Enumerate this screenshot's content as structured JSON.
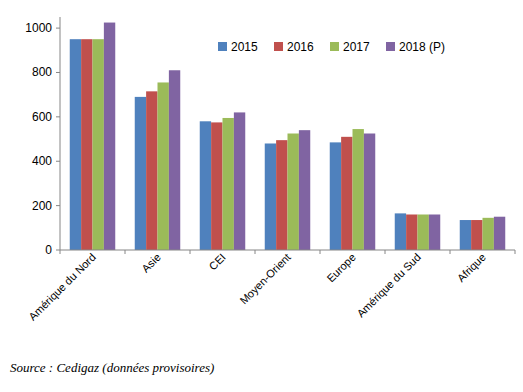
{
  "chart_data": {
    "type": "bar",
    "categories": [
      "Amérique du Nord",
      "Asie",
      "CEI",
      "Moyen-Orient",
      "Europe",
      "Amérique du Sud",
      "Afrique"
    ],
    "series": [
      {
        "name": "2015",
        "color": "#4f81bd",
        "values": [
          950,
          690,
          580,
          480,
          485,
          165,
          135
        ]
      },
      {
        "name": "2016",
        "color": "#c0504d",
        "values": [
          950,
          715,
          575,
          495,
          510,
          160,
          135
        ]
      },
      {
        "name": "2017",
        "color": "#9bbb59",
        "values": [
          950,
          755,
          595,
          525,
          545,
          160,
          145
        ]
      },
      {
        "name": "2018 (P)",
        "color": "#8064a2",
        "values": [
          1025,
          810,
          620,
          540,
          525,
          160,
          150
        ]
      }
    ],
    "ylim": [
      0,
      1050
    ],
    "yticks": [
      0,
      200,
      400,
      600,
      800,
      1000
    ],
    "grid": false,
    "legend": "upper right",
    "annotations": [
      "Source : Cedigaz (données provisoires)"
    ]
  }
}
